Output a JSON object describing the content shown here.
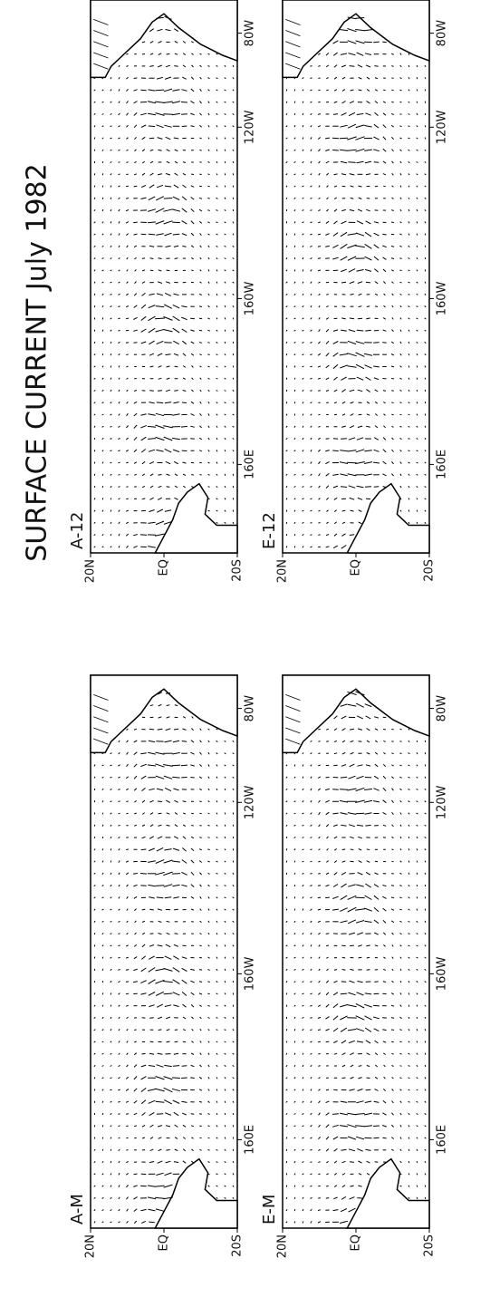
{
  "title": "SURFACE CURRENT  July 1982",
  "panels": [
    {
      "label": "A-M",
      "lat_labels": [
        "20N",
        "EQ",
        "20S"
      ],
      "lon_labels": [
        "160E",
        "160W",
        "120W",
        "80W"
      ]
    },
    {
      "label": "A-12",
      "lat_labels": [
        "20N",
        "EQ",
        "20S"
      ],
      "lon_labels": [
        "160E",
        "160W",
        "120W",
        "80W"
      ]
    },
    {
      "label": "E-M",
      "lat_labels": [
        "20N",
        "EQ",
        "20S"
      ],
      "lon_labels": [
        "160E",
        "160W",
        "120W",
        "80W"
      ]
    },
    {
      "label": "E-12",
      "lat_labels": [
        "20N",
        "EQ",
        "20S"
      ],
      "lon_labels": [
        "160E",
        "160W",
        "120W",
        "80W"
      ]
    }
  ]
}
